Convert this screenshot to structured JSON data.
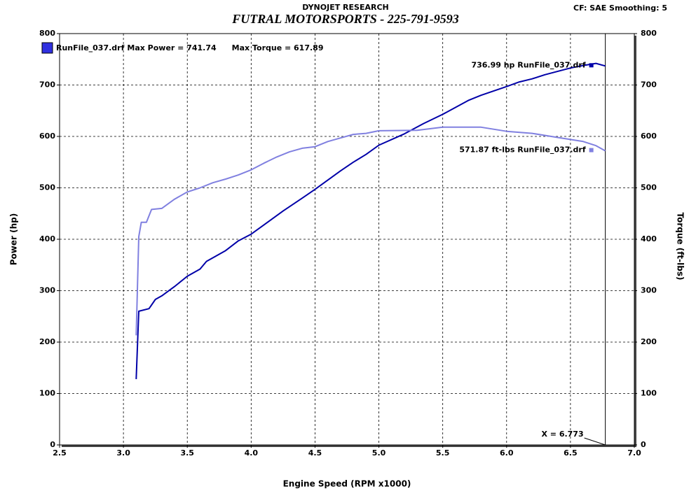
{
  "chart_data": {
    "type": "line",
    "header": "DYNOJET RESEARCH",
    "title": "FUTRAL MOTORSPORTS - 225-791-9593",
    "settings_text": "CF: SAE  Smoothing: 5",
    "legend": {
      "label": "RunFile_037.drf",
      "max_power": "Max Power = 741.74",
      "max_torque": "Max Torque = 617.89",
      "color": "#3030e0"
    },
    "x_label": "Engine Speed (RPM x1000)",
    "y_label": "Power (hp)",
    "y2_label": "Torque (ft-lbs)",
    "xlim": [
      2.5,
      7.0
    ],
    "xticks": [
      {
        "value": 2.5,
        "label": "2.5"
      },
      {
        "value": 3.0,
        "label": "3.0"
      },
      {
        "value": 3.5,
        "label": "3.5"
      },
      {
        "value": 4.0,
        "label": "4.0"
      },
      {
        "value": 4.5,
        "label": "4.5"
      },
      {
        "value": 5.0,
        "label": "5.0"
      },
      {
        "value": 5.5,
        "label": "5.5"
      },
      {
        "value": 6.0,
        "label": "6.0"
      },
      {
        "value": 6.5,
        "label": "6.5"
      },
      {
        "value": 7.0,
        "label": "7.0"
      }
    ],
    "ylim": [
      0,
      800
    ],
    "yticks": [
      0,
      100,
      200,
      300,
      400,
      500,
      600,
      700,
      800
    ],
    "y2lim": [
      0,
      800
    ],
    "y2ticks": [
      0,
      100,
      200,
      300,
      400,
      500,
      600,
      700,
      800
    ],
    "grid": true,
    "cursor": {
      "value": 6.773,
      "label": "X = 6.773"
    },
    "series": [
      {
        "color": "#0000a8",
        "end_label": "736.99 hp RunFile_037.drf",
        "x": [
          3.1,
          3.12,
          3.2,
          3.25,
          3.3,
          3.4,
          3.5,
          3.6,
          3.65,
          3.8,
          3.9,
          4.0,
          4.1,
          4.25,
          4.4,
          4.5,
          4.7,
          4.8,
          4.9,
          5.0,
          5.2,
          5.35,
          5.5,
          5.7,
          5.8,
          6.0,
          6.1,
          6.2,
          6.3,
          6.5,
          6.6,
          6.7,
          6.773
        ],
        "values": [
          128,
          260,
          265,
          283,
          290,
          308,
          328,
          342,
          357,
          378,
          397,
          410,
          428,
          455,
          480,
          497,
          533,
          550,
          565,
          583,
          605,
          625,
          643,
          670,
          680,
          697,
          706,
          712,
          720,
          733,
          738,
          742,
          737
        ]
      },
      {
        "color": "#8080e0",
        "axis": "y2",
        "end_label": "571.87 ft-lbs RunFile_037.drf",
        "x": [
          3.1,
          3.12,
          3.14,
          3.18,
          3.22,
          3.3,
          3.4,
          3.5,
          3.6,
          3.7,
          3.8,
          3.9,
          4.0,
          4.1,
          4.2,
          4.3,
          4.4,
          4.5,
          4.6,
          4.7,
          4.8,
          4.9,
          5.0,
          5.3,
          5.5,
          5.8,
          6.0,
          6.2,
          6.4,
          6.6,
          6.7,
          6.773
        ],
        "values": [
          213,
          405,
          433,
          433,
          458,
          460,
          478,
          492,
          500,
          510,
          517,
          525,
          535,
          548,
          560,
          570,
          577,
          580,
          590,
          597,
          604,
          606,
          611,
          612,
          618,
          618,
          610,
          606,
          598,
          590,
          582,
          572
        ]
      }
    ]
  }
}
